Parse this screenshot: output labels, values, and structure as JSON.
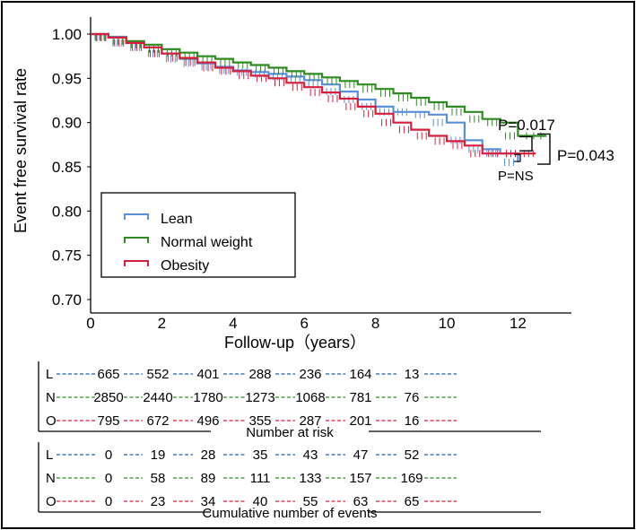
{
  "chart_data": {
    "type": "line",
    "subtype": "kaplan-meier",
    "xlabel": "Follow-up（years）",
    "ylabel": "Event free survival rate",
    "xlim": [
      0,
      13.5
    ],
    "ylim": [
      0.7,
      1.0
    ],
    "x_ticks": [
      0,
      2,
      4,
      6,
      8,
      10,
      12
    ],
    "x_tick_labels": [
      "0",
      "2",
      "4",
      "6",
      "8",
      "10",
      "12"
    ],
    "y_ticks": [
      0.7,
      0.75,
      0.8,
      0.85,
      0.9,
      0.95,
      1.0
    ],
    "y_tick_labels": [
      "0.70",
      "0.75",
      "0.80",
      "0.85",
      "0.90",
      "0.95",
      "1.00"
    ],
    "grid": false,
    "legend_position": "bottom-left",
    "series": [
      {
        "name": "Lean",
        "color": "#5b8fd9",
        "points": [
          [
            0,
            1.0
          ],
          [
            0.5,
            0.997
          ],
          [
            1,
            0.99
          ],
          [
            1.5,
            0.985
          ],
          [
            2,
            0.978
          ],
          [
            2.5,
            0.972
          ],
          [
            3,
            0.967
          ],
          [
            3.5,
            0.963
          ],
          [
            4,
            0.959
          ],
          [
            4.5,
            0.957
          ],
          [
            5,
            0.955
          ],
          [
            5.5,
            0.952
          ],
          [
            6,
            0.948
          ],
          [
            6.5,
            0.943
          ],
          [
            7,
            0.935
          ],
          [
            7.5,
            0.926
          ],
          [
            8,
            0.918
          ],
          [
            8.5,
            0.912
          ],
          [
            9,
            0.912
          ],
          [
            9.5,
            0.909
          ],
          [
            10,
            0.9
          ],
          [
            10.5,
            0.88
          ],
          [
            11,
            0.87
          ],
          [
            11.5,
            0.865
          ],
          [
            12,
            0.855
          ]
        ]
      },
      {
        "name": "Normal weight",
        "color": "#2e8b22",
        "points": [
          [
            0,
            1.0
          ],
          [
            0.5,
            0.996
          ],
          [
            1,
            0.992
          ],
          [
            1.5,
            0.988
          ],
          [
            2,
            0.983
          ],
          [
            2.5,
            0.979
          ],
          [
            3,
            0.975
          ],
          [
            3.5,
            0.972
          ],
          [
            4,
            0.968
          ],
          [
            4.5,
            0.965
          ],
          [
            5,
            0.962
          ],
          [
            5.5,
            0.958
          ],
          [
            6,
            0.955
          ],
          [
            6.5,
            0.951
          ],
          [
            7,
            0.947
          ],
          [
            7.5,
            0.943
          ],
          [
            8,
            0.938
          ],
          [
            8.5,
            0.933
          ],
          [
            9,
            0.928
          ],
          [
            9.5,
            0.923
          ],
          [
            10,
            0.918
          ],
          [
            10.5,
            0.912
          ],
          [
            11,
            0.904
          ],
          [
            11.5,
            0.9
          ],
          [
            12,
            0.885
          ],
          [
            12.8,
            0.885
          ]
        ]
      },
      {
        "name": "Obesity",
        "color": "#d61f3d",
        "points": [
          [
            0,
            1.0
          ],
          [
            0.5,
            0.996
          ],
          [
            1,
            0.99
          ],
          [
            1.5,
            0.985
          ],
          [
            2,
            0.978
          ],
          [
            2.5,
            0.973
          ],
          [
            3,
            0.968
          ],
          [
            3.5,
            0.962
          ],
          [
            4,
            0.958
          ],
          [
            4.5,
            0.953
          ],
          [
            5,
            0.95
          ],
          [
            5.5,
            0.945
          ],
          [
            6,
            0.94
          ],
          [
            6.5,
            0.934
          ],
          [
            7,
            0.927
          ],
          [
            7.5,
            0.918
          ],
          [
            8,
            0.91
          ],
          [
            8.5,
            0.9
          ],
          [
            9,
            0.892
          ],
          [
            9.5,
            0.885
          ],
          [
            10,
            0.879
          ],
          [
            10.5,
            0.874
          ],
          [
            11,
            0.865
          ],
          [
            11.5,
            0.865
          ],
          [
            12,
            0.865
          ],
          [
            12.5,
            0.865
          ]
        ]
      }
    ],
    "annotations": [
      {
        "text": "P=0.017",
        "between": [
          "Normal weight",
          "Obesity"
        ]
      },
      {
        "text": "P=0.043",
        "between": [
          "Normal weight",
          "Lean"
        ]
      },
      {
        "text": "P=NS",
        "between": [
          "Lean",
          "Obesity"
        ]
      }
    ]
  },
  "risk_table": {
    "title": "Number at risk",
    "rows": [
      {
        "label": "L",
        "color": "#1f5fae",
        "values": [
          "665",
          "552",
          "401",
          "288",
          "236",
          "164",
          "13"
        ]
      },
      {
        "label": "N",
        "color": "#2e8b22",
        "values": [
          "2850",
          "2440",
          "1780",
          "1273",
          "1068",
          "781",
          "76"
        ]
      },
      {
        "label": "O",
        "color": "#d61f3d",
        "values": [
          "795",
          "672",
          "496",
          "355",
          "287",
          "201",
          "16"
        ]
      }
    ]
  },
  "events_table": {
    "title": "Cumulative number of events",
    "rows": [
      {
        "label": "L",
        "color": "#1f5fae",
        "values": [
          "0",
          "19",
          "28",
          "35",
          "43",
          "47",
          "52"
        ]
      },
      {
        "label": "N",
        "color": "#2e8b22",
        "values": [
          "0",
          "58",
          "89",
          "111",
          "133",
          "157",
          "169"
        ]
      },
      {
        "label": "O",
        "color": "#d61f3d",
        "values": [
          "0",
          "23",
          "34",
          "40",
          "55",
          "63",
          "65"
        ]
      }
    ]
  }
}
